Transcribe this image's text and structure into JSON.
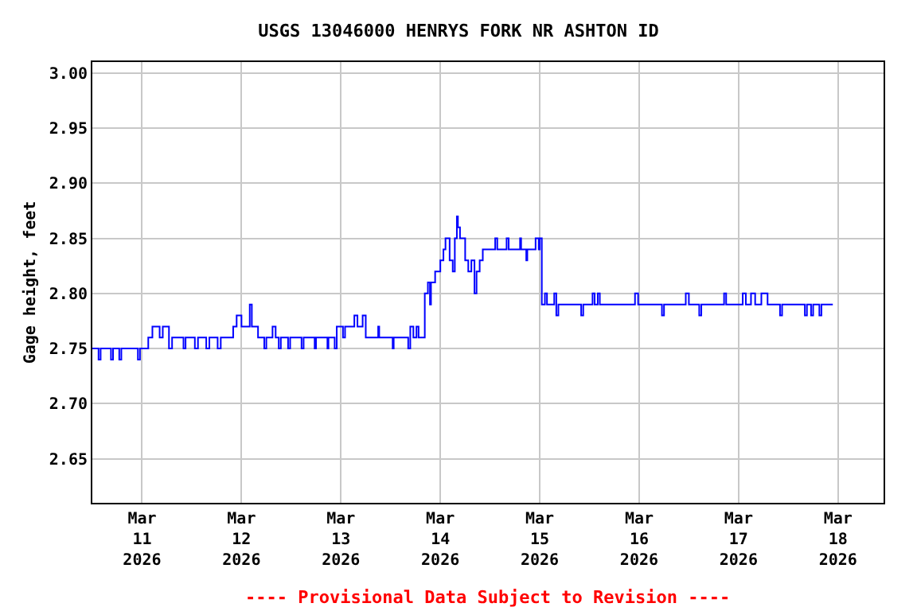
{
  "chart_data": {
    "type": "step",
    "title": "USGS 13046000 HENRYS FORK NR ASHTON ID",
    "ylabel": "Gage height, feet",
    "annotations": [
      "---- Provisional Data Subject to Revision ----"
    ],
    "xlim": [
      "2026-03-10T12:00",
      "2026-03-18T11:00"
    ],
    "xticks": [
      {
        "value": "2026-03-11",
        "label": "Mar\n11\n2026"
      },
      {
        "value": "2026-03-12",
        "label": "Mar\n12\n2026"
      },
      {
        "value": "2026-03-13",
        "label": "Mar\n13\n2026"
      },
      {
        "value": "2026-03-14",
        "label": "Mar\n14\n2026"
      },
      {
        "value": "2026-03-15",
        "label": "Mar\n15\n2026"
      },
      {
        "value": "2026-03-16",
        "label": "Mar\n16\n2026"
      },
      {
        "value": "2026-03-17",
        "label": "Mar\n17\n2026"
      },
      {
        "value": "2026-03-18",
        "label": "Mar\n18\n2026"
      }
    ],
    "ylim": [
      2.61,
      3.01
    ],
    "yticks": [
      {
        "value": 2.65,
        "label": "2.65"
      },
      {
        "value": 2.7,
        "label": "2.70"
      },
      {
        "value": 2.75,
        "label": "2.75"
      },
      {
        "value": 2.8,
        "label": "2.80"
      },
      {
        "value": 2.85,
        "label": "2.85"
      },
      {
        "value": 2.9,
        "label": "2.90"
      },
      {
        "value": 2.95,
        "label": "2.95"
      },
      {
        "value": 3.0,
        "label": "3.00"
      }
    ],
    "grid": true,
    "marker": "none",
    "line_style": "solid",
    "series": [
      {
        "color": "#0000ff",
        "x": [
          "2026-03-10T12:00",
          "2026-03-10T13:30",
          "2026-03-10T14:00",
          "2026-03-10T16:30",
          "2026-03-10T17:00",
          "2026-03-10T18:30",
          "2026-03-10T19:00",
          "2026-03-10T23:00",
          "2026-03-10T23:30",
          "2026-03-11T01:30",
          "2026-03-11T02:30",
          "2026-03-11T04:15",
          "2026-03-11T05:00",
          "2026-03-11T06:30",
          "2026-03-11T07:15",
          "2026-03-11T10:00",
          "2026-03-11T10:30",
          "2026-03-11T12:45",
          "2026-03-11T13:30",
          "2026-03-11T15:30",
          "2026-03-11T16:15",
          "2026-03-11T18:15",
          "2026-03-11T19:00",
          "2026-03-11T22:00",
          "2026-03-11T22:50",
          "2026-03-12T00:00",
          "2026-03-12T02:00",
          "2026-03-12T02:30",
          "2026-03-12T04:00",
          "2026-03-12T05:30",
          "2026-03-12T06:00",
          "2026-03-12T07:30",
          "2026-03-12T08:15",
          "2026-03-12T09:00",
          "2026-03-12T09:30",
          "2026-03-12T11:15",
          "2026-03-12T11:45",
          "2026-03-12T14:30",
          "2026-03-12T15:00",
          "2026-03-12T17:40",
          "2026-03-12T18:00",
          "2026-03-12T20:45",
          "2026-03-12T21:00",
          "2026-03-12T22:30",
          "2026-03-12T23:00",
          "2026-03-13T00:30",
          "2026-03-13T01:00",
          "2026-03-13T03:15",
          "2026-03-13T04:00",
          "2026-03-13T05:15",
          "2026-03-13T06:00",
          "2026-03-13T09:00",
          "2026-03-13T09:15",
          "2026-03-13T12:30",
          "2026-03-13T12:45",
          "2026-03-13T16:15",
          "2026-03-13T16:45",
          "2026-03-13T17:30",
          "2026-03-13T18:15",
          "2026-03-13T18:45",
          "2026-03-13T20:15",
          "2026-03-13T21:00",
          "2026-03-13T21:30",
          "2026-03-13T21:45",
          "2026-03-13T22:45",
          "2026-03-14T00:00",
          "2026-03-14T00:45",
          "2026-03-14T01:15",
          "2026-03-14T02:15",
          "2026-03-14T03:00",
          "2026-03-14T03:30",
          "2026-03-14T04:00",
          "2026-03-14T04:15",
          "2026-03-14T04:45",
          "2026-03-14T06:00",
          "2026-03-14T06:45",
          "2026-03-14T07:30",
          "2026-03-14T08:15",
          "2026-03-14T08:45",
          "2026-03-14T09:30",
          "2026-03-14T10:15",
          "2026-03-14T13:15",
          "2026-03-14T13:45",
          "2026-03-14T16:00",
          "2026-03-14T16:30",
          "2026-03-14T19:15",
          "2026-03-14T19:30",
          "2026-03-14T20:45",
          "2026-03-14T21:00",
          "2026-03-14T23:00",
          "2026-03-14T23:45",
          "2026-03-15T00:00",
          "2026-03-15T00:30",
          "2026-03-15T01:15",
          "2026-03-15T01:45",
          "2026-03-15T03:30",
          "2026-03-15T04:00",
          "2026-03-15T04:30",
          "2026-03-15T10:00",
          "2026-03-15T10:30",
          "2026-03-15T12:45",
          "2026-03-15T13:15",
          "2026-03-15T14:00",
          "2026-03-15T14:30",
          "2026-03-15T23:00",
          "2026-03-15T23:45",
          "2026-03-16T05:30",
          "2026-03-16T06:00",
          "2026-03-16T11:15",
          "2026-03-16T12:00",
          "2026-03-16T14:30",
          "2026-03-16T15:00",
          "2026-03-16T20:30",
          "2026-03-16T21:00",
          "2026-03-17T01:00",
          "2026-03-17T01:45",
          "2026-03-17T03:00",
          "2026-03-17T04:00",
          "2026-03-17T05:30",
          "2026-03-17T07:00",
          "2026-03-17T10:00",
          "2026-03-17T10:30",
          "2026-03-17T16:00",
          "2026-03-17T16:30",
          "2026-03-17T17:30",
          "2026-03-17T18:00",
          "2026-03-17T19:30",
          "2026-03-17T20:00",
          "2026-03-17T22:45"
        ],
        "values": [
          2.75,
          2.74,
          2.75,
          2.74,
          2.75,
          2.74,
          2.75,
          2.74,
          2.75,
          2.76,
          2.77,
          2.76,
          2.77,
          2.75,
          2.76,
          2.75,
          2.76,
          2.75,
          2.76,
          2.75,
          2.76,
          2.75,
          2.76,
          2.77,
          2.78,
          2.77,
          2.79,
          2.77,
          2.76,
          2.75,
          2.76,
          2.77,
          2.76,
          2.75,
          2.76,
          2.75,
          2.76,
          2.75,
          2.76,
          2.75,
          2.76,
          2.75,
          2.76,
          2.75,
          2.77,
          2.76,
          2.77,
          2.78,
          2.77,
          2.78,
          2.76,
          2.77,
          2.76,
          2.75,
          2.76,
          2.75,
          2.77,
          2.76,
          2.77,
          2.76,
          2.8,
          2.81,
          2.79,
          2.81,
          2.82,
          2.83,
          2.84,
          2.85,
          2.83,
          2.82,
          2.85,
          2.87,
          2.86,
          2.85,
          2.83,
          2.82,
          2.83,
          2.8,
          2.82,
          2.83,
          2.84,
          2.85,
          2.84,
          2.85,
          2.84,
          2.85,
          2.84,
          2.83,
          2.84,
          2.85,
          2.84,
          2.85,
          2.79,
          2.8,
          2.79,
          2.8,
          2.78,
          2.79,
          2.78,
          2.79,
          2.8,
          2.79,
          2.8,
          2.79,
          2.8,
          2.79,
          2.78,
          2.79,
          2.8,
          2.79,
          2.78,
          2.79,
          2.8,
          2.79,
          2.8,
          2.79,
          2.8,
          2.79,
          2.8,
          2.79,
          2.78,
          2.79,
          2.78,
          2.79,
          2.78,
          2.79,
          2.78,
          2.79,
          2.79
        ]
      }
    ]
  }
}
